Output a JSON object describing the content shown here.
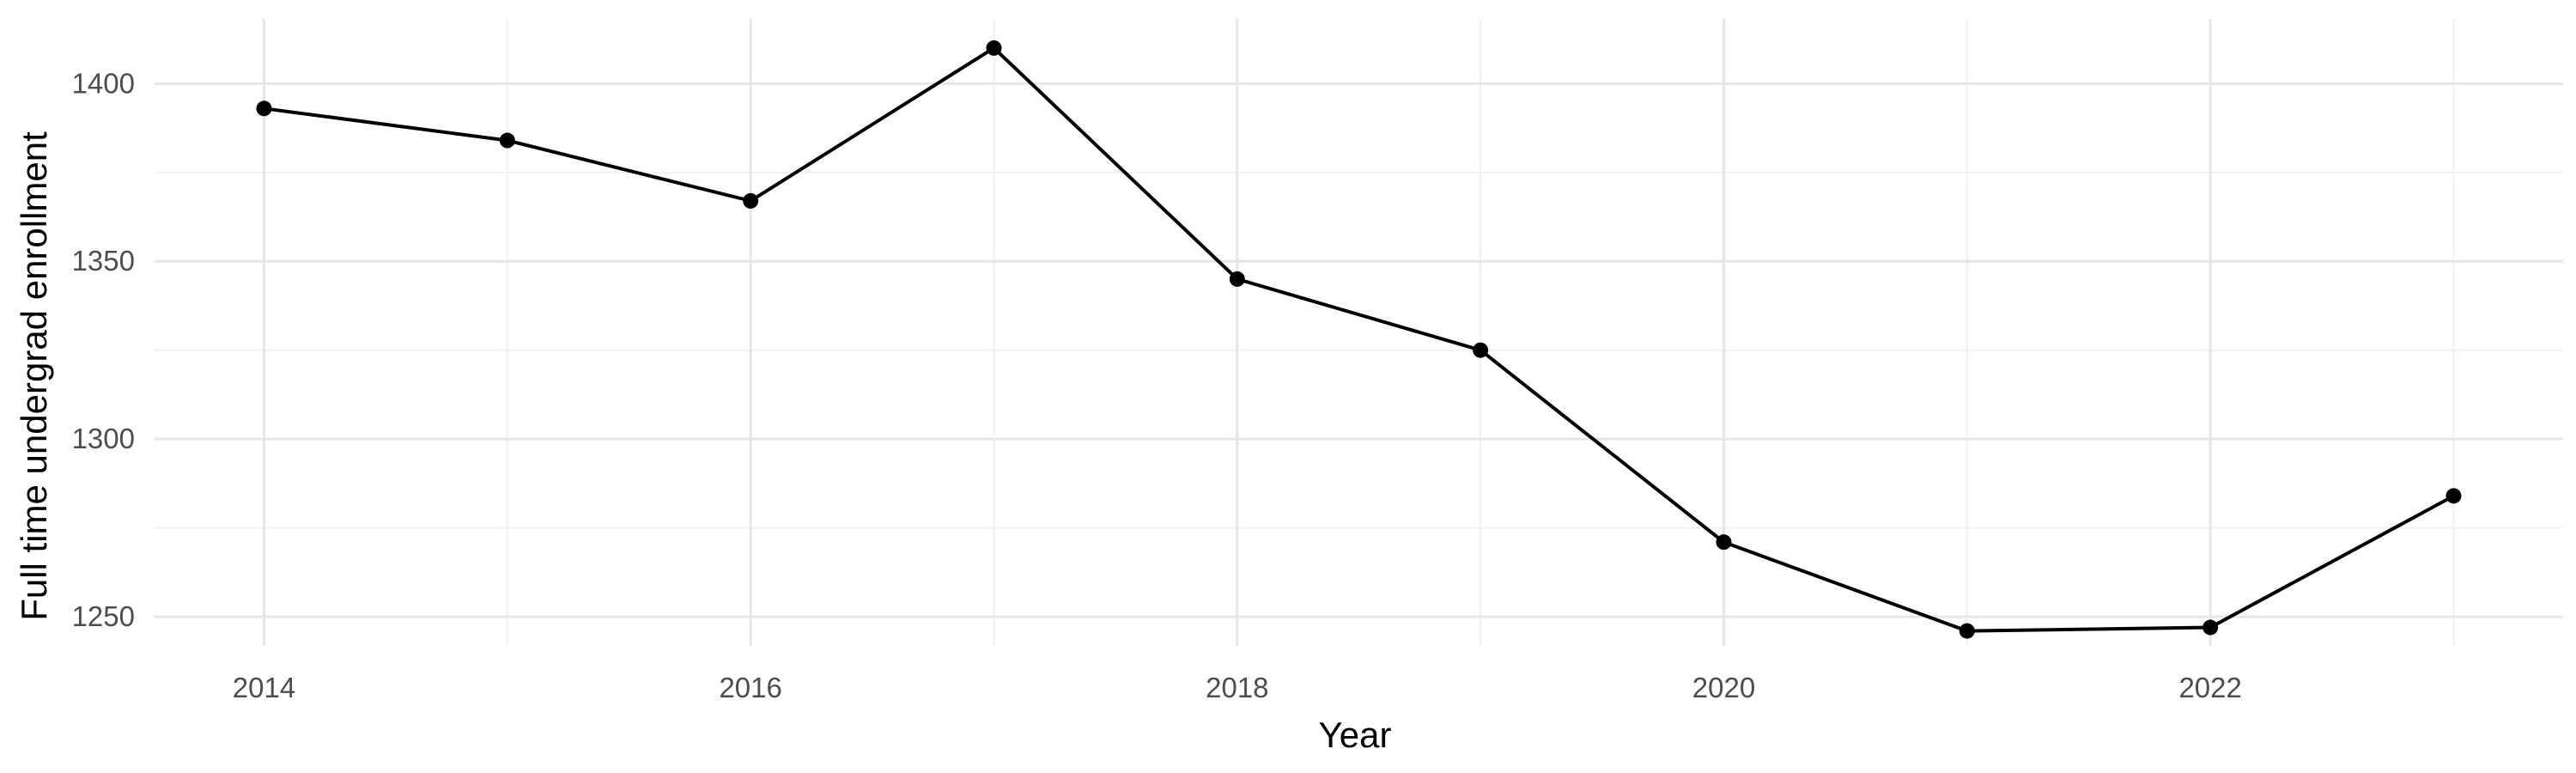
{
  "chart_data": {
    "type": "line",
    "title": "",
    "xlabel": "Year",
    "ylabel": "Full time undergrad enrollment",
    "x": [
      2014,
      2015,
      2016,
      2017,
      2018,
      2019,
      2020,
      2021,
      2022,
      2023
    ],
    "series": [
      {
        "values": [
          1393,
          1384,
          1367,
          1410,
          1345,
          1325,
          1271,
          1246,
          1247,
          1284
        ]
      }
    ],
    "xlim": [
      2013.55,
      2023.45
    ],
    "ylim": [
      1241.8,
      1418.2
    ],
    "x_ticks": [
      2014,
      2016,
      2018,
      2020,
      2022
    ],
    "x_tick_labels": [
      "2014",
      "2016",
      "2018",
      "2020",
      "2022"
    ],
    "x_minor_ticks": [
      2015,
      2017,
      2019,
      2021,
      2023
    ],
    "y_ticks": [
      1250,
      1300,
      1350,
      1400
    ],
    "y_tick_labels": [
      "1250",
      "1300",
      "1350",
      "1400"
    ],
    "y_minor_ticks": [
      1275,
      1325,
      1375
    ],
    "grid": true,
    "legend": "none",
    "colors": {
      "line": "#000000",
      "grid_major": "#e6e6e6",
      "grid_minor": "#f1f1f1",
      "tick_label": "#4d4d4d",
      "axis_title": "#000000"
    }
  }
}
